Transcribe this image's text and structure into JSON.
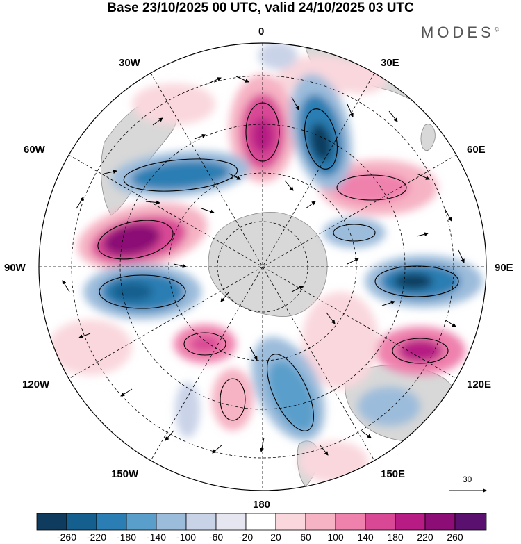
{
  "title": "Base 23/10/2025 00 UTC, valid 24/10/2025 03 UTC",
  "brand": "MODES",
  "brand_mark": "©",
  "longitude_labels": {
    "top": "0",
    "top_right": "30E",
    "right_upper": "60E",
    "right": "90E",
    "right_lower": "120E",
    "bottom_right": "150E",
    "bottom": "180",
    "bottom_left": "150W",
    "left_lower": "120W",
    "left": "90W",
    "left_upper": "60W",
    "top_left": "30W"
  },
  "reference_vector": "30",
  "colorbar": {
    "labels": [
      "-260",
      "-220",
      "-180",
      "-140",
      "-100",
      "-60",
      "-20",
      "20",
      "60",
      "100",
      "140",
      "180",
      "220",
      "260"
    ],
    "colors": [
      "#0f3c5e",
      "#155f8e",
      "#2a7eb3",
      "#5a9fcb",
      "#9cbcdb",
      "#c9d3e8",
      "#e6e6f1",
      "#ffffff",
      "#f9d7dd",
      "#f6b3c4",
      "#ef81ad",
      "#d94895",
      "#b61c84",
      "#8b0d75",
      "#5a106e"
    ]
  },
  "colors": {
    "land": "#cfcfcf",
    "land_edge": "#777777",
    "grid": "#000000",
    "vector": "#000000"
  }
}
